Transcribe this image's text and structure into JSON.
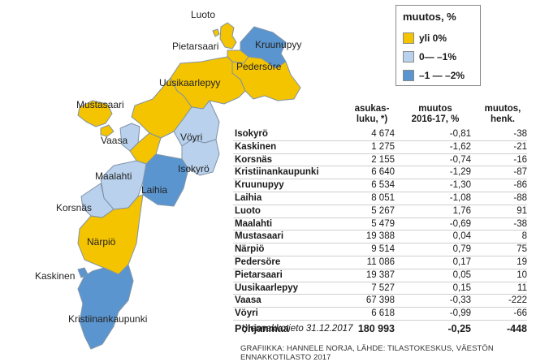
{
  "colors": {
    "over_0": "#f4c400",
    "zero_to_minus1": "#b9d1ec",
    "minus1_to_minus2": "#5b95cf",
    "border": "#7f93a8"
  },
  "legend": {
    "title": "muutos, %",
    "items": [
      {
        "label": "yli 0%",
        "color": "#f4c400"
      },
      {
        "label": "0— –1%",
        "color": "#b9d1ec"
      },
      {
        "label": "–1 — –2%",
        "color": "#5b95cf"
      }
    ]
  },
  "map_labels": {
    "luoto": "Luoto",
    "pietarsaari": "Pietarsaari",
    "kruunupyy": "Kruunupyy",
    "pedersore": "Pedersöre",
    "uusikaarlepyy": "Uusikaarlepyy",
    "mustasaari": "Mustasaari",
    "vaasa": "Vaasa",
    "voyri": "Vöyri",
    "isokyro": "Isokyrö",
    "maalahti": "Maalahti",
    "laihia": "Laihia",
    "korsnas": "Korsnäs",
    "narpio": "Närpiö",
    "kaskinen": "Kaskinen",
    "kristiinankaupunki": "Kristiinankaupunki"
  },
  "table": {
    "headers": {
      "population": [
        "asukas-",
        "luku, *)"
      ],
      "change_pct": [
        "muutos",
        "2016-17, %"
      ],
      "change_persons": [
        "muutos,",
        "henk."
      ]
    },
    "rows": [
      {
        "name": "Isokyrö",
        "population": "4 674",
        "change_pct": "-0,81",
        "change_persons": "-38"
      },
      {
        "name": "Kaskinen",
        "population": "1 275",
        "change_pct": "-1,62",
        "change_persons": "-21"
      },
      {
        "name": "Korsnäs",
        "population": "2 155",
        "change_pct": "-0,74",
        "change_persons": "-16"
      },
      {
        "name": "Kristiinankaupunki",
        "population": "6 640",
        "change_pct": "-1,29",
        "change_persons": "-87"
      },
      {
        "name": "Kruunupyy",
        "population": "6 534",
        "change_pct": "-1,30",
        "change_persons": "-86"
      },
      {
        "name": "Laihia",
        "population": "8 051",
        "change_pct": "-1,08",
        "change_persons": "-88"
      },
      {
        "name": "Luoto",
        "population": "5 267",
        "change_pct": "1,76",
        "change_persons": "91"
      },
      {
        "name": "Maalahti",
        "population": "5 479",
        "change_pct": "-0,69",
        "change_persons": "-38"
      },
      {
        "name": "Mustasaari",
        "population": "19 388",
        "change_pct": "0,04",
        "change_persons": "8"
      },
      {
        "name": "Närpiö",
        "population": "9 514",
        "change_pct": "0,79",
        "change_persons": "75"
      },
      {
        "name": "Pedersöre",
        "population": "11 086",
        "change_pct": "0,17",
        "change_persons": "19"
      },
      {
        "name": "Pietarsaari",
        "population": "19 387",
        "change_pct": "0,05",
        "change_persons": "10"
      },
      {
        "name": "Uusikaarlepyy",
        "population": "7 527",
        "change_pct": "0,15",
        "change_persons": "11"
      },
      {
        "name": "Vaasa",
        "population": "67 398",
        "change_pct": "-0,33",
        "change_persons": "-222"
      },
      {
        "name": "Vöyri",
        "population": "6 618",
        "change_pct": "-0,99",
        "change_persons": "-66"
      }
    ],
    "total": {
      "name": "Pohjanmaa",
      "population": "180 993",
      "change_pct": "-0,25",
      "change_persons": "-448"
    }
  },
  "footnote": "*) ennakkotieto 31.12.2017",
  "credit": "GRAFIIKKA: HANNELE NORJA, LÄHDE: TILASTOKESKUS, VÄESTÖN ENNAKKOTILASTO 2017"
}
